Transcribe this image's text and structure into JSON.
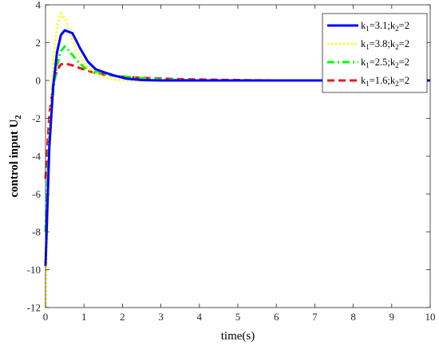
{
  "chart_data": {
    "type": "line",
    "xlabel": "time(s)",
    "ylabel_main": "control input U",
    "ylabel_sub": "2",
    "xlim": [
      0,
      10
    ],
    "ylim": [
      -12,
      4
    ],
    "xticks": [
      0,
      1,
      2,
      3,
      4,
      5,
      6,
      7,
      8,
      9,
      10
    ],
    "yticks": [
      -12,
      -10,
      -8,
      -6,
      -4,
      -2,
      0,
      2,
      4
    ],
    "legend_position": "top-right",
    "grid": false,
    "series": [
      {
        "name": "k1=3.1;k2=2",
        "legend": {
          "a": "k",
          "a_sub": "1",
          "b": "=3.1;k",
          "b_sub": "2",
          "c": "=2"
        },
        "color": "#0000ff",
        "style": "solid",
        "x": [
          0,
          0.1,
          0.2,
          0.3,
          0.4,
          0.5,
          0.7,
          0.9,
          1.1,
          1.3,
          1.5,
          1.8,
          2.1,
          2.5,
          3,
          4,
          5,
          6,
          7,
          8,
          9,
          10
        ],
        "y": [
          -9.8,
          -3.5,
          -0.3,
          1.5,
          2.4,
          2.65,
          2.5,
          1.7,
          1.0,
          0.6,
          0.45,
          0.25,
          0.1,
          0.02,
          0.0,
          0,
          0,
          0,
          0,
          0,
          0,
          0
        ]
      },
      {
        "name": "k1=3.8;k2=2",
        "legend": {
          "a": "k",
          "a_sub": "1",
          "b": "=3.8;k",
          "b_sub": "2",
          "c": "=2"
        },
        "color": "#ffff00",
        "style": "dotted",
        "x": [
          0,
          0.05,
          0.1,
          0.2,
          0.3,
          0.4,
          0.5,
          0.6,
          0.8,
          1.0,
          1.2,
          1.5,
          1.8,
          2.1,
          2.5,
          3,
          4,
          5,
          6,
          7,
          8,
          9,
          10
        ],
        "y": [
          -12,
          -7.5,
          -3.0,
          1.0,
          2.9,
          3.55,
          3.3,
          2.7,
          1.6,
          0.9,
          0.5,
          0.2,
          0.05,
          0.0,
          0.0,
          0,
          0,
          0,
          0,
          0,
          0,
          0,
          0
        ]
      },
      {
        "name": "k1=2.5;k2=2",
        "legend": {
          "a": "k",
          "a_sub": "1",
          "b": "=2.5;k",
          "b_sub": "2",
          "c": "=2"
        },
        "color": "#00ff00",
        "style": "dashdot",
        "x": [
          0,
          0.1,
          0.2,
          0.3,
          0.4,
          0.5,
          0.6,
          0.8,
          1.0,
          1.2,
          1.5,
          1.8,
          2.1,
          2.5,
          3,
          4,
          5,
          6,
          7,
          8,
          9,
          10
        ],
        "y": [
          -8.0,
          -3.0,
          -0.5,
          0.8,
          1.55,
          1.8,
          1.6,
          1.1,
          0.7,
          0.5,
          0.35,
          0.25,
          0.2,
          0.12,
          0.05,
          0,
          0,
          0,
          0,
          0,
          0,
          0
        ]
      },
      {
        "name": "k1=1.6;k2=2",
        "legend": {
          "a": "k",
          "a_sub": "1",
          "b": "=1.6;k",
          "b_sub": "2",
          "c": "=2"
        },
        "color": "#e8191c",
        "style": "dashed",
        "x": [
          0,
          0.1,
          0.2,
          0.3,
          0.4,
          0.5,
          0.7,
          0.9,
          1.2,
          1.5,
          2.0,
          2.5,
          3,
          3.5,
          4,
          5,
          6,
          7,
          8,
          9,
          10
        ],
        "y": [
          -5.2,
          -1.8,
          -0.2,
          0.55,
          0.85,
          0.9,
          0.8,
          0.65,
          0.45,
          0.32,
          0.2,
          0.14,
          0.1,
          0.07,
          0.05,
          0.02,
          0.0,
          0,
          0,
          0,
          0
        ]
      }
    ]
  }
}
